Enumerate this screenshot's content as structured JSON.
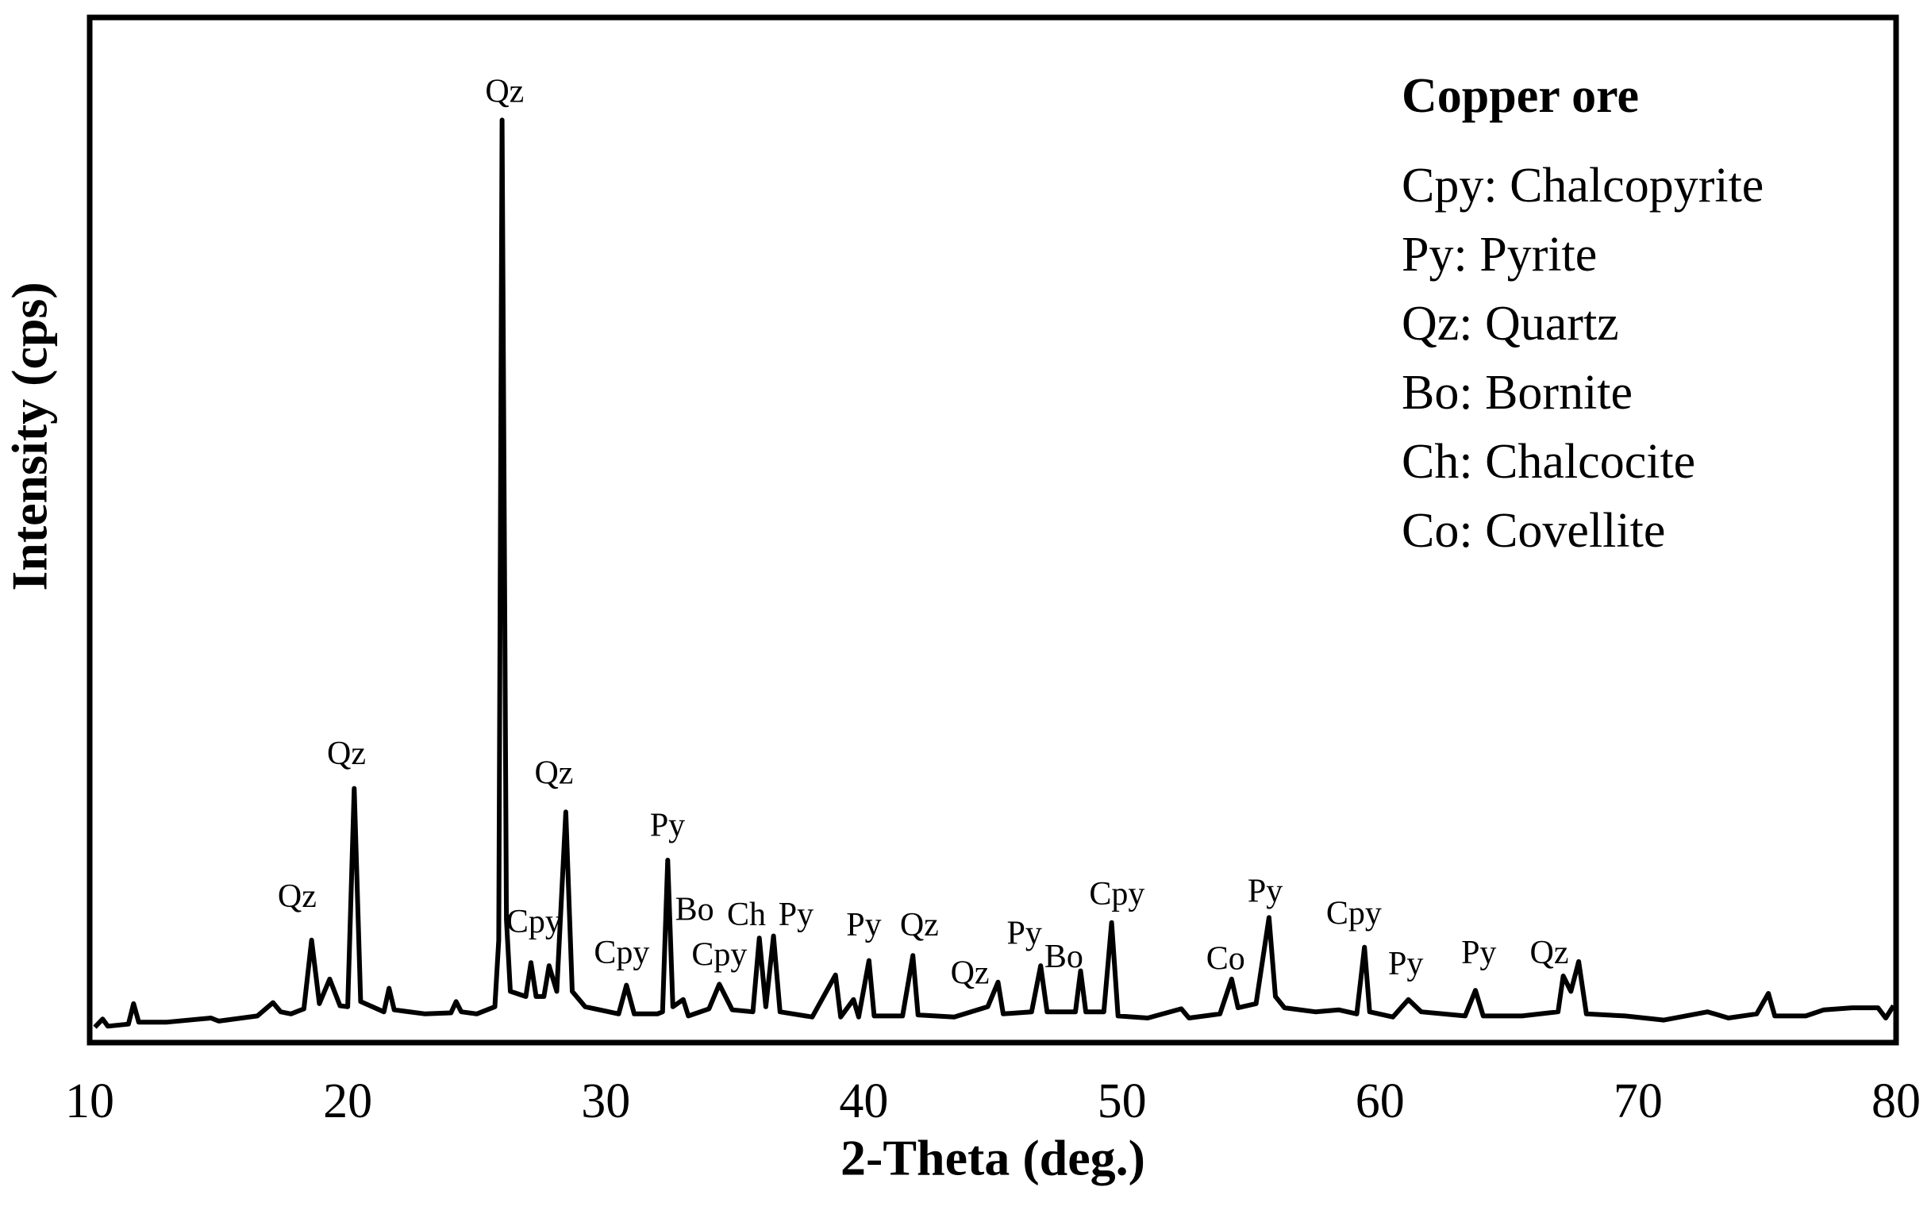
{
  "chart_data": {
    "type": "line",
    "xlabel": "2-Theta (deg.)",
    "ylabel": "Intensity (cps)",
    "xlim": [
      10,
      80
    ],
    "xticks": [
      10,
      20,
      30,
      40,
      50,
      60,
      70,
      80
    ],
    "ylim": [
      0,
      100
    ],
    "x": [
      10.2,
      10.5,
      10.7,
      11.5,
      11.7,
      11.9,
      13,
      14.7,
      15,
      16.5,
      17.1,
      17.4,
      17.8,
      18.3,
      18.6,
      18.9,
      19.3,
      19.7,
      20.0,
      20.25,
      20.5,
      21.4,
      21.6,
      21.8,
      23,
      24.0,
      24.2,
      24.4,
      25.0,
      25.7,
      25.85,
      25.98,
      26.15,
      26.3,
      26.9,
      27.1,
      27.3,
      27.6,
      27.8,
      28.1,
      28.45,
      28.7,
      29.2,
      30.5,
      30.8,
      31.1,
      32.0,
      32.2,
      32.4,
      32.6,
      33.0,
      33.2,
      34.0,
      34.4,
      34.9,
      35.7,
      35.95,
      36.2,
      36.5,
      36.75,
      38.0,
      38.9,
      39.1,
      39.6,
      39.8,
      40.2,
      40.4,
      41.5,
      41.9,
      42.1,
      43.5,
      44.8,
      45.2,
      45.4,
      46.5,
      46.85,
      47.1,
      48.2,
      48.4,
      48.6,
      49.3,
      49.6,
      49.85,
      51,
      52.3,
      52.6,
      53.8,
      54.25,
      54.5,
      55.2,
      55.7,
      55.95,
      56.3,
      57.5,
      58.4,
      59.1,
      59.4,
      59.6,
      60.5,
      61.1,
      61.6,
      63.3,
      63.7,
      64.0,
      65.5,
      66.9,
      67.1,
      67.4,
      67.7,
      68.0,
      69.5,
      71,
      72.7,
      73.5,
      74.6,
      75.05,
      75.3,
      76.5,
      77.2,
      78.3,
      79.3,
      79.6,
      79.9
    ],
    "series": [
      {
        "color": "#000000",
        "values": [
          1.5,
          2.3,
          1.6,
          1.8,
          3.8,
          2.0,
          2.0,
          2.4,
          2.1,
          2.6,
          3.9,
          3.0,
          2.8,
          3.3,
          10.0,
          3.8,
          6.2,
          3.6,
          3.5,
          24.8,
          4.0,
          3.0,
          5.3,
          3.2,
          2.8,
          2.9,
          4.0,
          3.0,
          2.8,
          3.5,
          10,
          90,
          12,
          5,
          4.5,
          7.8,
          4.5,
          4.5,
          7.5,
          5,
          22.5,
          5,
          3.5,
          2.8,
          5.6,
          2.8,
          2.8,
          3.0,
          17.8,
          3.5,
          4.2,
          2.6,
          3.3,
          5.7,
          3.2,
          3.0,
          10.2,
          3.5,
          10.4,
          3.0,
          2.5,
          6.6,
          2.5,
          4.2,
          2.5,
          8.0,
          2.6,
          2.6,
          8.5,
          2.7,
          2.5,
          3.5,
          5.9,
          2.8,
          3.0,
          7.5,
          3.0,
          3.0,
          7.0,
          3.0,
          3.0,
          11.7,
          2.6,
          2.4,
          3.3,
          2.4,
          2.8,
          6.2,
          3.4,
          3.8,
          12.2,
          4.5,
          3.4,
          3.0,
          3.2,
          2.8,
          9.3,
          3.0,
          2.5,
          4.2,
          3.0,
          2.6,
          5.1,
          2.6,
          2.6,
          3.0,
          6.5,
          5.0,
          7.9,
          2.8,
          2.6,
          2.2,
          3.0,
          2.4,
          2.8,
          4.8,
          2.6,
          2.6,
          3.2,
          3.4,
          3.4,
          2.4,
          3.6
        ]
      }
    ],
    "annotations": [
      {
        "text": "Qz",
        "x": 26.08,
        "y": 92.5
      },
      {
        "text": "Qz",
        "x": 19.95,
        "y": 27.9
      },
      {
        "text": "Qz",
        "x": 18.04,
        "y": 14.0
      },
      {
        "text": "Qz",
        "x": 27.99,
        "y": 26.0
      },
      {
        "text": "Py",
        "x": 32.39,
        "y": 20.9
      },
      {
        "text": "Cpy",
        "x": 27.22,
        "y": 11.5
      },
      {
        "text": "Cpy",
        "x": 30.62,
        "y": 8.5
      },
      {
        "text": "Bo",
        "x": 33.44,
        "y": 12.7
      },
      {
        "text": "Cpy",
        "x": 34.4,
        "y": 8.3
      },
      {
        "text": "Ch",
        "x": 35.45,
        "y": 12.2
      },
      {
        "text": "Py",
        "x": 37.37,
        "y": 12.2
      },
      {
        "text": "Py",
        "x": 40.0,
        "y": 11.2
      },
      {
        "text": "Qz",
        "x": 42.15,
        "y": 11.2
      },
      {
        "text": "Qz",
        "x": 44.11,
        "y": 6.5
      },
      {
        "text": "Py",
        "x": 46.22,
        "y": 10.4
      },
      {
        "text": "Bo",
        "x": 47.75,
        "y": 8.1
      },
      {
        "text": "Cpy",
        "x": 49.81,
        "y": 14.2
      },
      {
        "text": "Co",
        "x": 54.02,
        "y": 7.9
      },
      {
        "text": "Py",
        "x": 55.55,
        "y": 14.5
      },
      {
        "text": "Cpy",
        "x": 58.99,
        "y": 12.3
      },
      {
        "text": "Py",
        "x": 61.0,
        "y": 7.4
      },
      {
        "text": "Py",
        "x": 63.83,
        "y": 8.5
      },
      {
        "text": "Qz",
        "x": 66.56,
        "y": 8.5
      }
    ],
    "key": {
      "title": "Copper ore",
      "entries": [
        "Cpy: Chalcopyrite",
        "Py: Pyrite",
        "Qz: Quartz",
        "Bo: Bornite",
        "Ch: Chalcocite",
        "Co: Covellite"
      ]
    }
  }
}
